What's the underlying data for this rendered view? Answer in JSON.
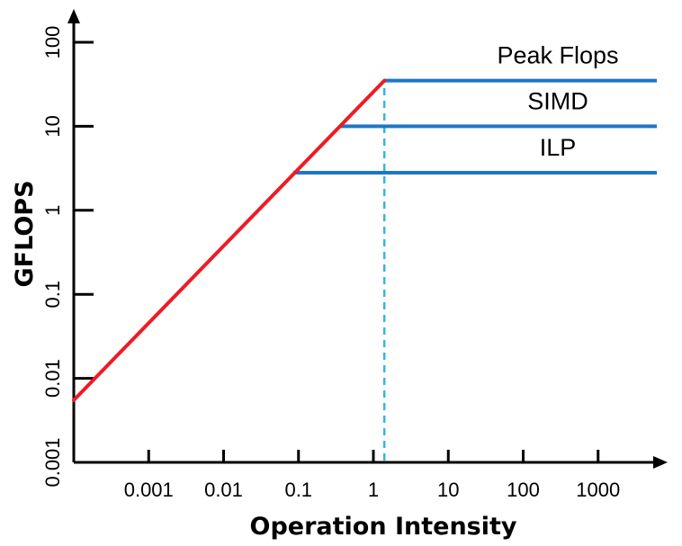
{
  "chart_data": {
    "type": "line",
    "title": "",
    "xlabel": "Operation Intensity",
    "ylabel": "GFLOPS",
    "xscale": "log",
    "yscale": "log",
    "xlim": [
      0.0001,
      10000
    ],
    "ylim": [
      0.001,
      100
    ],
    "x_ticks": [
      {
        "value": 0.001,
        "label": "0.001"
      },
      {
        "value": 0.01,
        "label": "0.01"
      },
      {
        "value": 0.1,
        "label": "0.1"
      },
      {
        "value": 1,
        "label": "1"
      },
      {
        "value": 10,
        "label": "10"
      },
      {
        "value": 100,
        "label": "100"
      },
      {
        "value": 1000,
        "label": "1000"
      }
    ],
    "y_ticks": [
      {
        "value": 0.001,
        "label": "0.001"
      },
      {
        "value": 0.01,
        "label": "0.01"
      },
      {
        "value": 0.1,
        "label": "0.1"
      },
      {
        "value": 1,
        "label": "1"
      },
      {
        "value": 10,
        "label": "10"
      },
      {
        "value": 100,
        "label": "100"
      }
    ],
    "bandwidth_line": {
      "color": "#ed1c24",
      "x": [
        0.0001,
        1.4
      ],
      "y": [
        0.0055,
        35
      ]
    },
    "ceilings": [
      {
        "label": "Peak Flops",
        "y": 35,
        "x_start": 1.4,
        "x_end": 10000,
        "color": "#1f77c4"
      },
      {
        "label": "SIMD",
        "y": 10,
        "x_start": 0.35,
        "x_end": 10000,
        "color": "#1f77c4"
      },
      {
        "label": "ILP",
        "y": 2.8,
        "x_start": 0.085,
        "x_end": 10000,
        "color": "#1f77c4"
      }
    ],
    "ridge_line": {
      "x": 1.4,
      "y_from": 0.001,
      "y_to": 35,
      "color": "#33b5e5",
      "style": "dashed"
    },
    "grid": false,
    "legend": "none"
  }
}
